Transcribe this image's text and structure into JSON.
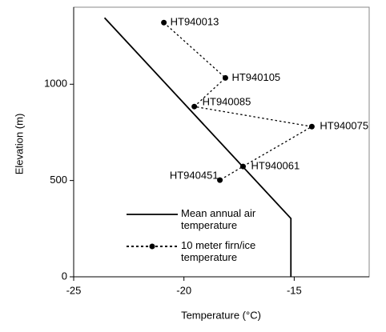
{
  "chart_data": {
    "type": "line",
    "xlabel": "Temperature (°C)",
    "ylabel": "Elevation (m)",
    "xlim": [
      -25,
      -11.6
    ],
    "ylim": [
      0,
      1400
    ],
    "xticks": [
      -25,
      -20,
      -15
    ],
    "yticks": [
      0,
      500,
      1000
    ],
    "series": [
      {
        "name": "Mean annual air temperature",
        "color": "#000000",
        "style": "solid",
        "x": [
          -23.6,
          -15.15,
          -15.15
        ],
        "values": [
          1345,
          303,
          0
        ]
      },
      {
        "name": "10 meter firn/ice temperature",
        "color": "#000000",
        "style": "dotted",
        "markers": true,
        "x": [
          -20.91,
          -18.12,
          -19.53,
          -14.2,
          -17.32,
          -18.37
        ],
        "values": [
          1320,
          1033,
          884,
          780,
          573,
          502
        ],
        "labels": [
          "HT940013",
          "HT940105",
          "HT940085",
          "HT940075",
          "HT940061",
          "HT940451"
        ]
      }
    ]
  }
}
